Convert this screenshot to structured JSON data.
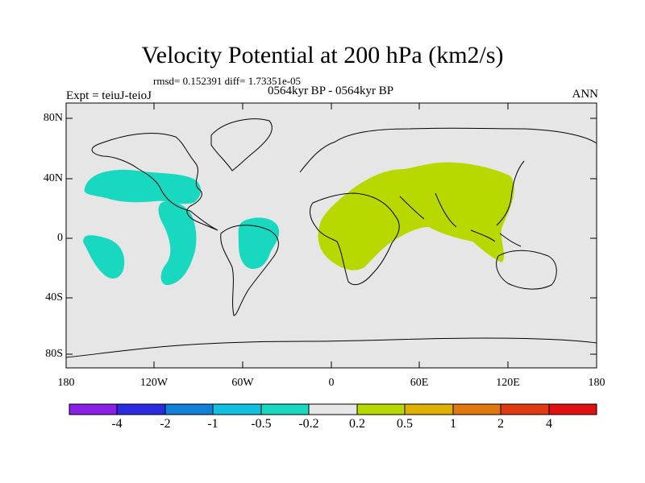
{
  "title": "Velocity Potential at 200 hPa (km2/s)",
  "subtitle": {
    "stats": "rmsd= 0.152391 diff= 1.73351e-05",
    "left": "Expt = teiuJ-teioJ",
    "center": "0564kyr BP - 0564kyr BP",
    "right": "ANN"
  },
  "axes": {
    "y_ticks": [
      "80N",
      "40N",
      "0",
      "40S",
      "80S"
    ],
    "x_ticks": [
      "180",
      "120W",
      "60W",
      "0",
      "60E",
      "120E",
      "180"
    ]
  },
  "colorbar": {
    "labels": [
      "-4",
      "-2",
      "-1",
      "-0.5",
      "-0.2",
      "0.2",
      "0.5",
      "1",
      "2",
      "4"
    ],
    "colors": [
      "#8a1fe6",
      "#2a2ae0",
      "#1080d8",
      "#10c0e0",
      "#18d8c0",
      "#e6e6e6",
      "#b8d800",
      "#e0b000",
      "#e07810",
      "#e03a10",
      "#e01010"
    ]
  },
  "map": {
    "background": "#e6e6e6",
    "regions": [
      {
        "name": "north-pacific-negative",
        "level": "-0.5 to -0.2",
        "color": "#18d8c0"
      },
      {
        "name": "south-pacific-negative",
        "level": "-0.5 to -0.2",
        "color": "#18d8c0"
      },
      {
        "name": "east-pacific-negative",
        "level": "-0.5 to -0.2",
        "color": "#18d8c0"
      },
      {
        "name": "south-america-negative",
        "level": "-0.5 to -0.2",
        "color": "#18d8c0"
      },
      {
        "name": "africa-asia-positive",
        "level": "0.2 to 0.5",
        "color": "#b8d800"
      }
    ]
  }
}
